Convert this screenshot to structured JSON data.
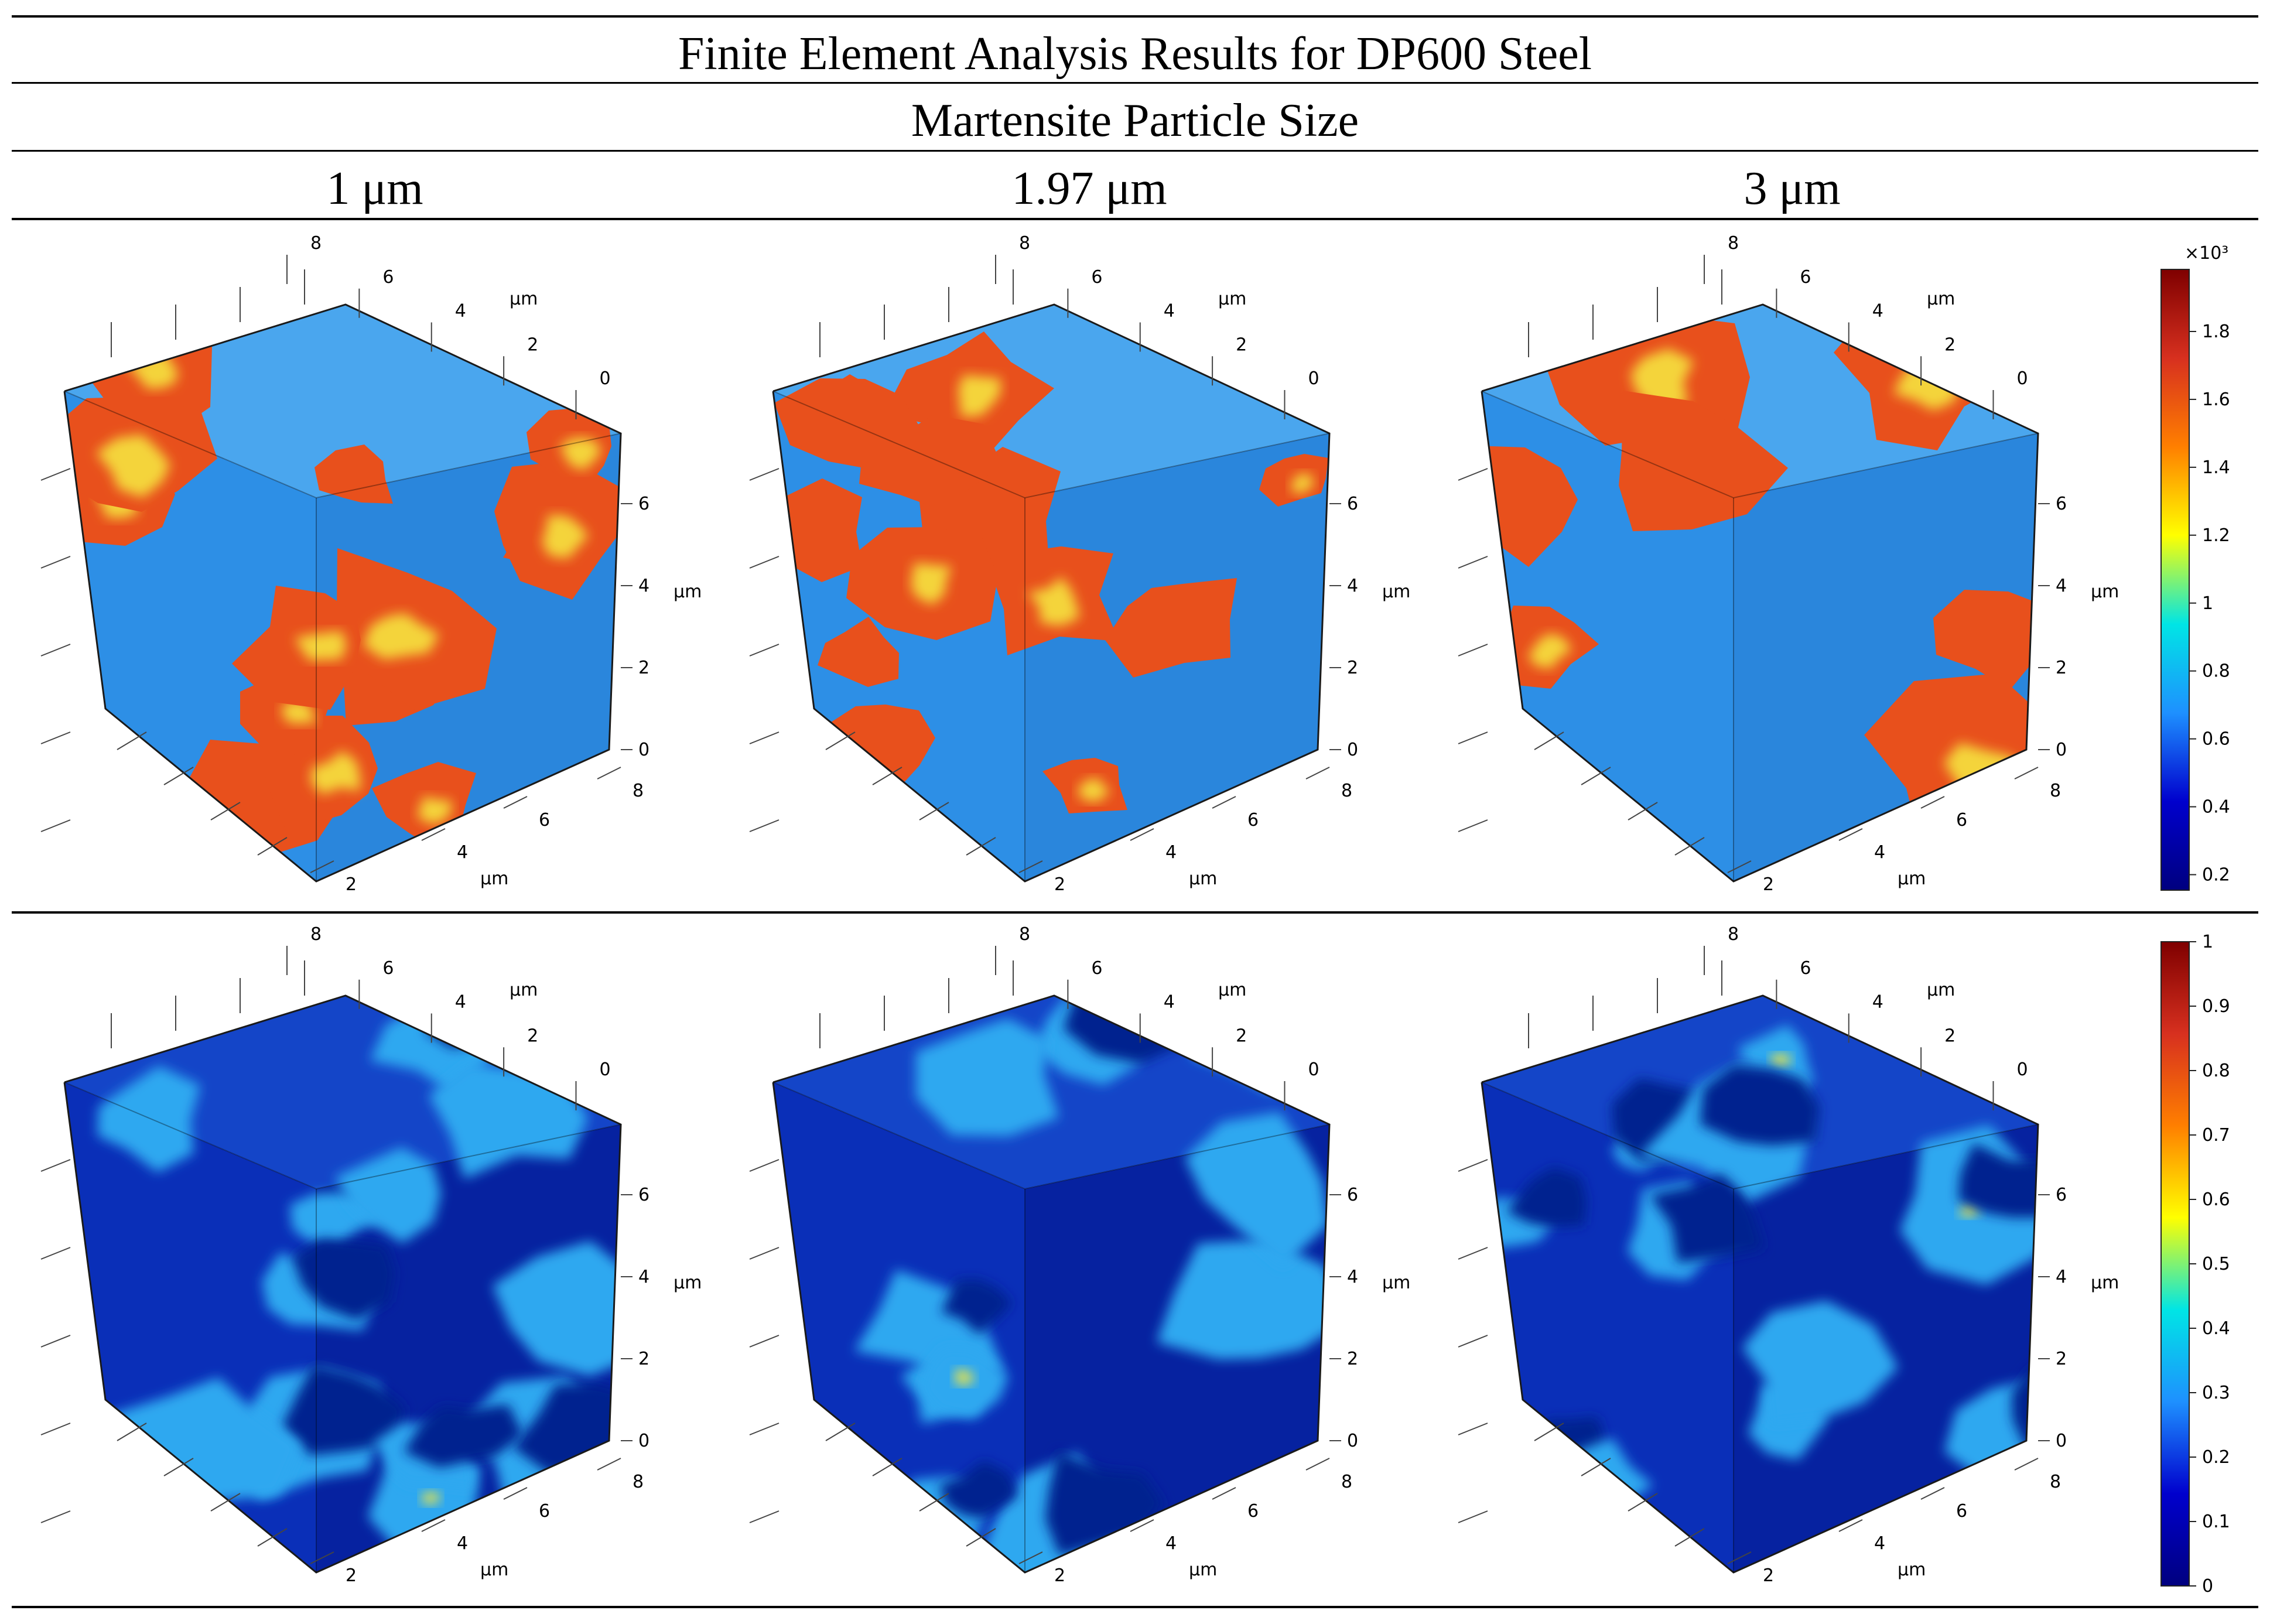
{
  "title": "Finite Element Analysis Results for DP600 Steel",
  "subtitle": "Martensite Particle Size",
  "columns": [
    "1 μm",
    "1.97 μm",
    "3 μm"
  ],
  "axis": {
    "top_ticks": [
      "8",
      "6",
      "4",
      "2",
      "0"
    ],
    "right_ticks": [
      "6",
      "4",
      "2",
      "0"
    ],
    "bottom_ticks": [
      "8",
      "6",
      "4",
      "2"
    ],
    "unit": "μm"
  },
  "colorbars": [
    {
      "exponent": "×10³",
      "ticks": [
        "1.8",
        "1.6",
        "1.4",
        "1.2",
        "1",
        "0.8",
        "0.6",
        "0.4",
        "0.2"
      ],
      "colors": [
        "#7f0000",
        "#d7301f",
        "#ff7f00",
        "#ffff00",
        "#00e5e5",
        "#1e90ff",
        "#0000cd",
        "#00007f"
      ]
    },
    {
      "exponent": "",
      "ticks": [
        "1",
        "0.9",
        "0.8",
        "0.7",
        "0.6",
        "0.5",
        "0.4",
        "0.3",
        "0.2",
        "0.1",
        "0"
      ],
      "colors": [
        "#7f0000",
        "#d7301f",
        "#ff7f00",
        "#ffff00",
        "#00e5e5",
        "#1e90ff",
        "#0000cd",
        "#00007f"
      ]
    }
  ],
  "palette": {
    "stress_base": "#2d8fe6",
    "stress_hot": "#e8501c",
    "strain_base": "#0a2fb8",
    "strain_light": "#2fa8f0"
  }
}
